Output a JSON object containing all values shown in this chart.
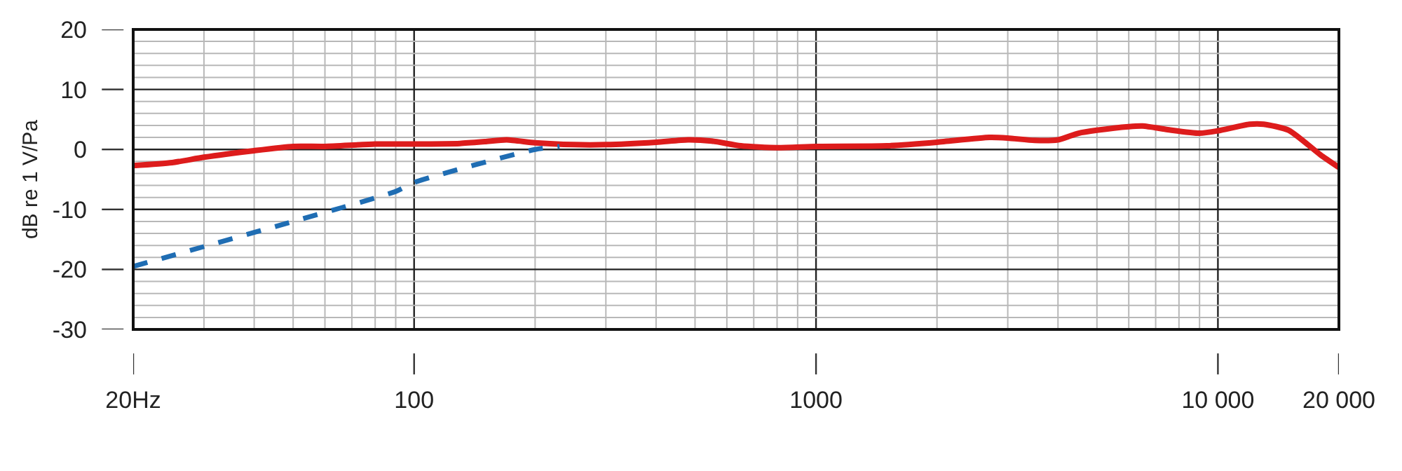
{
  "chart_data": {
    "type": "line",
    "ylabel": "dB re 1 V/Pa",
    "log": "x",
    "xlim": [
      20,
      20000
    ],
    "ylim": [
      -30,
      20
    ],
    "xticks": [
      {
        "value": 20,
        "label": "20Hz"
      },
      {
        "value": 30,
        "label": null
      },
      {
        "value": 40,
        "label": null
      },
      {
        "value": 50,
        "label": null
      },
      {
        "value": 60,
        "label": null
      },
      {
        "value": 70,
        "label": null
      },
      {
        "value": 80,
        "label": null
      },
      {
        "value": 90,
        "label": null
      },
      100,
      {
        "value": 200,
        "label": null
      },
      {
        "value": 300,
        "label": null
      },
      {
        "value": 400,
        "label": null
      },
      {
        "value": 500,
        "label": null
      },
      {
        "value": 600,
        "label": null
      },
      {
        "value": 700,
        "label": null
      },
      {
        "value": 800,
        "label": null
      },
      {
        "value": 900,
        "label": null
      },
      1000,
      {
        "value": 2000,
        "label": null
      },
      {
        "value": 3000,
        "label": null
      },
      {
        "value": 4000,
        "label": null
      },
      {
        "value": 5000,
        "label": null
      },
      {
        "value": 6000,
        "label": null
      },
      {
        "value": 7000,
        "label": null
      },
      {
        "value": 8000,
        "label": null
      },
      {
        "value": 9000,
        "label": null
      },
      {
        "value": 10000,
        "label": "10 000"
      },
      {
        "value": 20000,
        "label": "20 000"
      }
    ],
    "yticks": [
      -30,
      {
        "value": -28,
        "label": null
      },
      {
        "value": -26,
        "label": null
      },
      {
        "value": -24,
        "label": null
      },
      {
        "value": -22,
        "label": null
      },
      -20,
      {
        "value": -18,
        "label": null
      },
      {
        "value": -16,
        "label": null
      },
      {
        "value": -14,
        "label": null
      },
      {
        "value": -12,
        "label": null
      },
      -10,
      {
        "value": -8,
        "label": null
      },
      {
        "value": -6,
        "label": null
      },
      {
        "value": -4,
        "label": null
      },
      {
        "value": -2,
        "label": null
      },
      0,
      {
        "value": 2,
        "label": null
      },
      {
        "value": 4,
        "label": null
      },
      {
        "value": 6,
        "label": null
      },
      {
        "value": 8,
        "label": null
      },
      10,
      {
        "value": 12,
        "label": null
      },
      {
        "value": 14,
        "label": null
      },
      {
        "value": 16,
        "label": null
      },
      {
        "value": 18,
        "label": null
      },
      20
    ],
    "grid": true,
    "series": [
      {
        "color": "#dd1c1c",
        "line_style": "solid",
        "x": [
          20,
          25,
          30,
          40,
          50,
          60,
          80,
          100,
          130,
          150,
          170,
          200,
          250,
          300,
          400,
          480,
          550,
          650,
          800,
          1000,
          1500,
          2000,
          2700,
          3000,
          3500,
          4000,
          4500,
          5000,
          6000,
          6500,
          7500,
          9000,
          10000,
          12000,
          13000,
          15000,
          18000,
          20000
        ],
        "values": [
          -2.7,
          -2.2,
          -1.3,
          -0.2,
          0.5,
          0.5,
          0.9,
          0.9,
          1.0,
          1.3,
          1.6,
          1.1,
          0.8,
          0.8,
          1.2,
          1.6,
          1.4,
          0.6,
          0.3,
          0.5,
          0.6,
          1.2,
          2.0,
          1.9,
          1.5,
          1.6,
          2.7,
          3.2,
          3.8,
          3.9,
          3.3,
          2.7,
          3.1,
          4.2,
          4.2,
          3.2,
          -0.9,
          -3.0
        ]
      },
      {
        "color": "#1f6db3",
        "line_style": "dashed",
        "x": [
          20,
          50,
          90,
          100,
          200,
          230
        ],
        "values": [
          -19.5,
          -12,
          -7,
          -5.5,
          0,
          0.5
        ]
      }
    ]
  }
}
